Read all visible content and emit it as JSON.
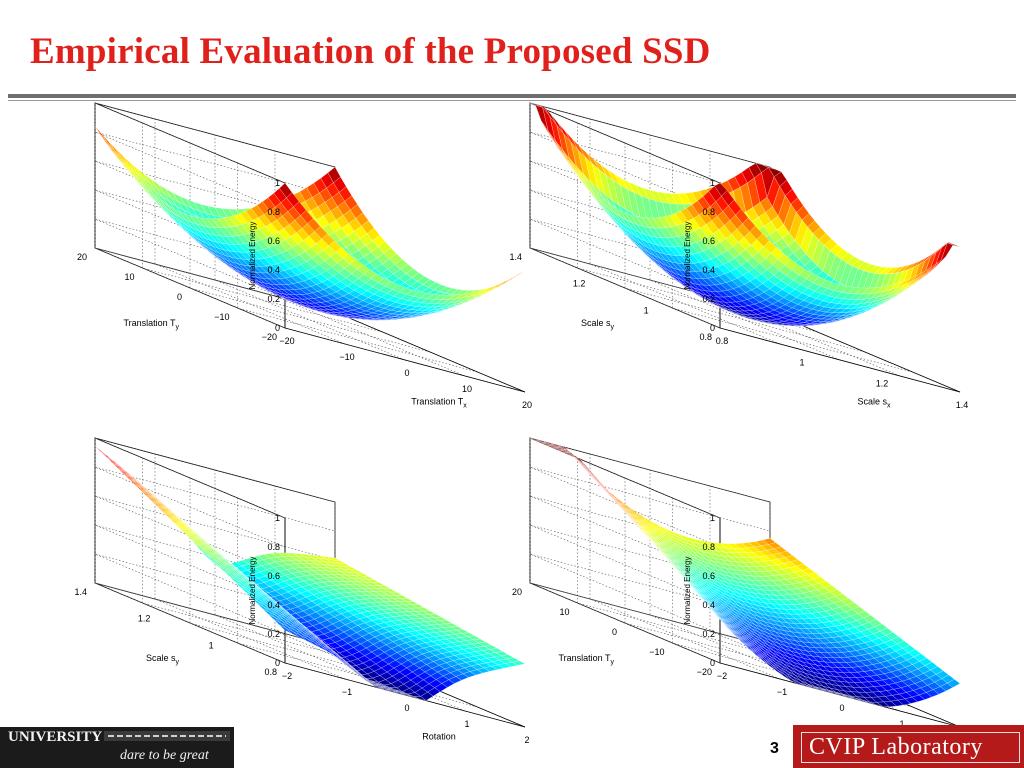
{
  "title": "Empirical Evaluation of the Proposed SSD",
  "page_number": "3",
  "footer": {
    "university": "UNIVERSITY",
    "tagline": "dare to be great",
    "lab": "CVIP Laboratory"
  },
  "colors": {
    "title": "#e0201b",
    "lab_bg": "#b51a1a",
    "univ_bg": "#1b1b1b"
  },
  "chart_data": [
    {
      "type": "surface",
      "zlabel": "Normalized Energy",
      "xlabel": "Translation T_x",
      "ylabel": "Translation T_y",
      "z_ticks": [
        "0",
        "0.2",
        "0.4",
        "0.6",
        "0.8",
        "1"
      ],
      "x_ticks": [
        "−20",
        "−10",
        "0",
        "10",
        "20"
      ],
      "y_ticks": [
        "−20",
        "−10",
        "0",
        "10",
        "20"
      ],
      "xlim": [
        -20,
        20
      ],
      "ylim": [
        -20,
        20
      ],
      "zlim": [
        0,
        1
      ],
      "shape": "bowl",
      "grid": true
    },
    {
      "type": "surface",
      "zlabel": "Normalized Energy",
      "xlabel": "Scale s_x",
      "ylabel": "Scale s_y",
      "z_ticks": [
        "0",
        "0.2",
        "0.4",
        "0.6",
        "0.8",
        "1"
      ],
      "x_ticks": [
        "0.8",
        "1",
        "1.2",
        "1.4"
      ],
      "y_ticks": [
        "0.8",
        "1",
        "1.2",
        "1.4"
      ],
      "xlim": [
        0.8,
        1.4
      ],
      "ylim": [
        0.8,
        1.4
      ],
      "zlim": [
        0,
        1
      ],
      "shape": "bowl",
      "grid": true
    },
    {
      "type": "surface",
      "zlabel": "Normalized Energy",
      "xlabel": "Rotation",
      "ylabel": "Scale s_y",
      "z_ticks": [
        "0",
        "0.2",
        "0.4",
        "0.6",
        "0.8",
        "1"
      ],
      "x_ticks": [
        "−2",
        "−1",
        "0",
        "1",
        "2"
      ],
      "y_ticks": [
        "0.8",
        "1",
        "1.2",
        "1.4"
      ],
      "xlim": [
        -2,
        2
      ],
      "ylim": [
        0.8,
        1.4
      ],
      "zlim": [
        0,
        1
      ],
      "shape": "valley",
      "grid": true
    },
    {
      "type": "surface",
      "zlabel": "Normalized Energy",
      "xlabel": "Rotation",
      "ylabel": "Translation T_y",
      "z_ticks": [
        "0",
        "0.2",
        "0.4",
        "0.6",
        "0.8",
        "1"
      ],
      "x_ticks": [
        "−2",
        "−1",
        "0",
        "1",
        "2"
      ],
      "y_ticks": [
        "−20",
        "−10",
        "0",
        "10",
        "20"
      ],
      "xlim": [
        -2,
        2
      ],
      "ylim": [
        -20,
        20
      ],
      "zlim": [
        0,
        1
      ],
      "shape": "valley",
      "grid": true
    }
  ]
}
